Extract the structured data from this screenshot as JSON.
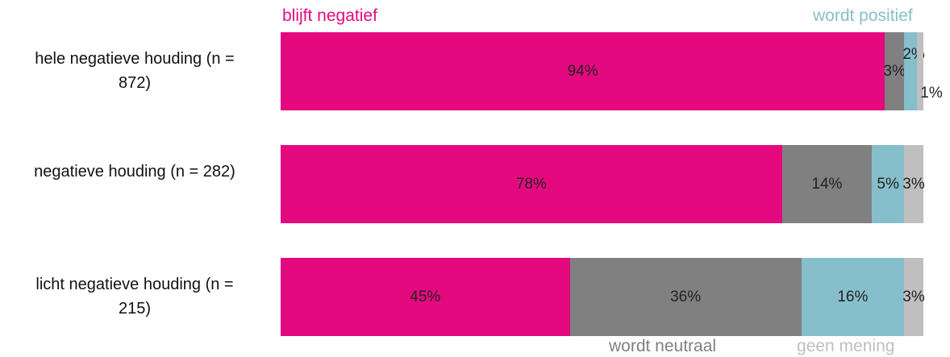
{
  "chart_data": {
    "type": "stacked-bar",
    "orientation": "horizontal",
    "categories": [
      "hele negatieve houding (n = 872)",
      "negatieve houding (n = 282)",
      "licht negatieve houding (n = 215)"
    ],
    "xlim": [
      0,
      100
    ],
    "series": [
      {
        "name": "blijft negatief",
        "color": "#e5097f",
        "values": [
          94,
          78,
          45
        ],
        "value_labels": [
          "94%",
          "78%",
          "45%"
        ]
      },
      {
        "name": "wordt neutraal",
        "color": "#808080",
        "values": [
          3,
          14,
          36
        ],
        "value_labels": [
          "3%",
          "14%",
          "36%"
        ]
      },
      {
        "name": "wordt positief",
        "color": "#86bfcb",
        "values": [
          2,
          5,
          16
        ],
        "value_labels": [
          "2%",
          "5%",
          "16%"
        ]
      },
      {
        "name": "geen mening",
        "color": "#bfbfbf",
        "values": [
          1,
          3,
          3
        ],
        "value_labels": [
          "1%",
          "3%",
          "3%"
        ]
      }
    ]
  }
}
